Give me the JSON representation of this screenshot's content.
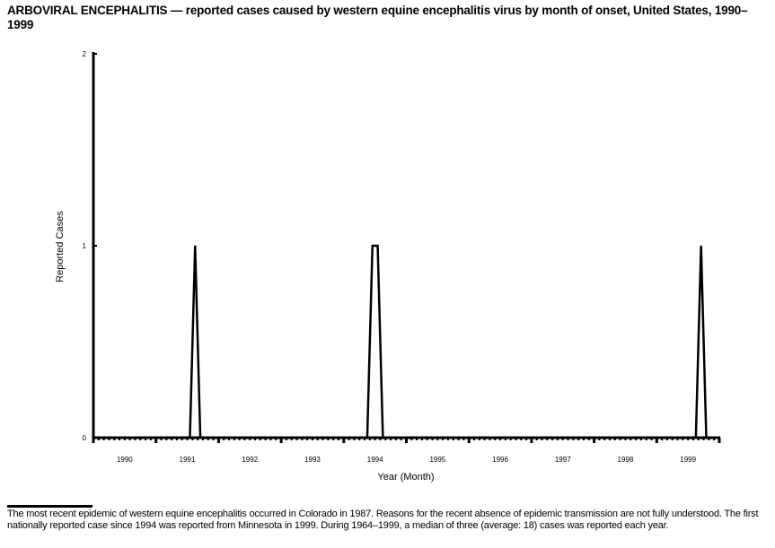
{
  "chart_data": {
    "type": "line",
    "title": "ARBOVIRAL ENCEPHALITIS — reported cases caused by western equine encephalitis virus by month of onset, United States, 1990–1999",
    "xlabel": "Year (Month)",
    "ylabel": "Reported Cases",
    "ylim": [
      0,
      2
    ],
    "yticks": [
      "0",
      "1",
      "2"
    ],
    "categories": [
      "1990",
      "1991",
      "1992",
      "1993",
      "1994",
      "1995",
      "1996",
      "1997",
      "1998",
      "1999"
    ],
    "grid": false,
    "series": [
      {
        "values_by_year": {
          "1990": [
            0,
            0,
            0,
            0,
            0,
            0,
            0,
            0,
            0,
            0,
            0,
            0
          ],
          "1991": [
            0,
            0,
            0,
            0,
            0,
            0,
            0,
            1,
            0,
            0,
            0,
            0
          ],
          "1992": [
            0,
            0,
            0,
            0,
            0,
            0,
            0,
            0,
            0,
            0,
            0,
            0
          ],
          "1993": [
            0,
            0,
            0,
            0,
            0,
            0,
            0,
            0,
            0,
            0,
            0,
            0
          ],
          "1994": [
            0,
            0,
            0,
            0,
            0,
            1,
            1,
            0,
            0,
            0,
            0,
            0
          ],
          "1995": [
            0,
            0,
            0,
            0,
            0,
            0,
            0,
            0,
            0,
            0,
            0,
            0
          ],
          "1996": [
            0,
            0,
            0,
            0,
            0,
            0,
            0,
            0,
            0,
            0,
            0,
            0
          ],
          "1997": [
            0,
            0,
            0,
            0,
            0,
            0,
            0,
            0,
            0,
            0,
            0,
            0
          ],
          "1998": [
            0,
            0,
            0,
            0,
            0,
            0,
            0,
            0,
            0,
            0,
            0,
            0
          ],
          "1999": [
            0,
            0,
            0,
            0,
            0,
            0,
            0,
            0,
            1,
            0,
            0,
            0
          ]
        }
      }
    ],
    "line_color": "#000000"
  },
  "footnote": "The most recent epidemic of western equine encephalitis occurred in Colorado in 1987. Reasons for the recent absence of epidemic transmission are not fully understood. The first nationally reported case since 1994 was reported from Minnesota in 1999. During 1964–1999, a median of three (average: 18) cases was reported each year."
}
